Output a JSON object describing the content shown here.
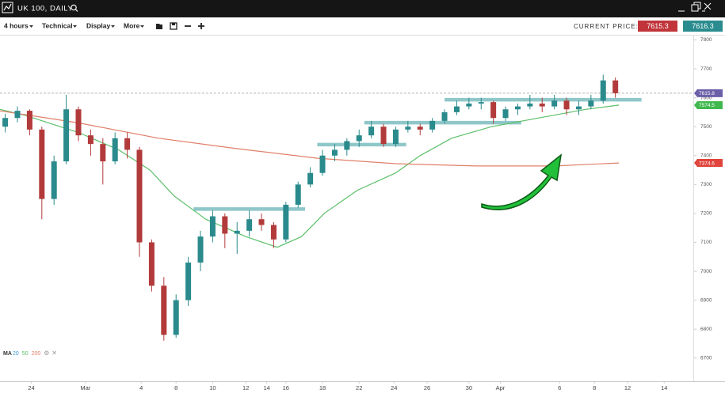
{
  "header": {
    "symbol": "UK 100, DAILY"
  },
  "toolbar": {
    "items": [
      "4 hours",
      "Technical",
      "Display",
      "More"
    ],
    "current_price_label": "CURRENT PRICE:",
    "bid": 7615.3,
    "ask": 7616.3
  },
  "chart_data": {
    "type": "candlestick",
    "x": [
      0.3,
      1.0,
      1.7,
      2.4,
      3.1,
      3.8,
      4.5,
      5.2,
      5.9,
      6.6,
      7.3,
      8.0,
      8.7,
      9.4,
      10.1,
      10.8,
      11.5,
      12.2,
      12.9,
      13.6,
      14.3,
      15.0,
      15.7,
      16.4,
      17.1,
      17.8,
      18.5,
      19.2,
      19.9,
      20.6,
      21.3,
      22.0,
      22.7,
      23.4,
      24.1,
      24.8,
      25.5,
      26.2,
      26.9,
      27.6,
      28.3,
      29.0,
      29.7,
      30.4,
      31.1,
      31.8,
      32.5,
      33.2,
      33.9,
      34.6,
      35.3
    ],
    "candles": [
      [
        7500,
        7545,
        7480,
        7530
      ],
      [
        7530,
        7570,
        7515,
        7555
      ],
      [
        7555,
        7560,
        7470,
        7490
      ],
      [
        7490,
        7500,
        7180,
        7250
      ],
      [
        7250,
        7400,
        7230,
        7380
      ],
      [
        7380,
        7610,
        7370,
        7560
      ],
      [
        7560,
        7570,
        7450,
        7470
      ],
      [
        7470,
        7490,
        7400,
        7440
      ],
      [
        7440,
        7460,
        7300,
        7380
      ],
      [
        7380,
        7480,
        7370,
        7460
      ],
      [
        7460,
        7480,
        7390,
        7420
      ],
      [
        7420,
        7430,
        7050,
        7100
      ],
      [
        7100,
        7110,
        6930,
        6950
      ],
      [
        6950,
        6980,
        6760,
        6780
      ],
      [
        6780,
        6920,
        6770,
        6900
      ],
      [
        6900,
        7050,
        6880,
        7030
      ],
      [
        7030,
        7140,
        7000,
        7120
      ],
      [
        7120,
        7210,
        7100,
        7190
      ],
      [
        7190,
        7200,
        7080,
        7130
      ],
      [
        7130,
        7170,
        7060,
        7140
      ],
      [
        7140,
        7210,
        7120,
        7180
      ],
      [
        7180,
        7200,
        7140,
        7160
      ],
      [
        7160,
        7170,
        7080,
        7110
      ],
      [
        7110,
        7240,
        7100,
        7230
      ],
      [
        7230,
        7310,
        7220,
        7300
      ],
      [
        7300,
        7360,
        7290,
        7340
      ],
      [
        7340,
        7420,
        7330,
        7400
      ],
      [
        7400,
        7440,
        7380,
        7420
      ],
      [
        7420,
        7460,
        7400,
        7450
      ],
      [
        7450,
        7490,
        7430,
        7470
      ],
      [
        7470,
        7520,
        7460,
        7500
      ],
      [
        7500,
        7510,
        7430,
        7440
      ],
      [
        7440,
        7500,
        7430,
        7490
      ],
      [
        7490,
        7520,
        7480,
        7500
      ],
      [
        7500,
        7510,
        7470,
        7490
      ],
      [
        7490,
        7530,
        7480,
        7520
      ],
      [
        7520,
        7560,
        7510,
        7550
      ],
      [
        7550,
        7590,
        7540,
        7570
      ],
      [
        7570,
        7600,
        7560,
        7580
      ],
      [
        7580,
        7600,
        7560,
        7585
      ],
      [
        7585,
        7590,
        7510,
        7530
      ],
      [
        7530,
        7570,
        7520,
        7560
      ],
      [
        7560,
        7580,
        7540,
        7570
      ],
      [
        7570,
        7610,
        7560,
        7580
      ],
      [
        7580,
        7600,
        7550,
        7570
      ],
      [
        7570,
        7610,
        7560,
        7590
      ],
      [
        7590,
        7600,
        7540,
        7560
      ],
      [
        7560,
        7590,
        7540,
        7570
      ],
      [
        7570,
        7610,
        7560,
        7590
      ],
      [
        7590,
        7680,
        7580,
        7660
      ],
      [
        7660,
        7670,
        7600,
        7615.8
      ]
    ],
    "up_color": "#2a8a8c",
    "down_color": "#b23a3a",
    "lines": [
      {
        "color": "#5cc06a",
        "x": [
          0,
          1.4,
          4.5,
          6.8,
          8.6,
          10,
          11.8,
          14.1,
          15.9,
          17.3,
          18.6,
          20.5,
          22.7,
          24.1,
          25.9,
          28.2,
          30.9,
          33.6,
          35.5
        ],
        "values": [
          7560,
          7540,
          7480,
          7420,
          7350,
          7260,
          7180,
          7120,
          7083,
          7120,
          7200,
          7280,
          7340,
          7400,
          7460,
          7500,
          7530,
          7560,
          7574.5
        ]
      },
      {
        "color": "#e0806a",
        "x": [
          0,
          4.5,
          9.1,
          13.6,
          18.2,
          22.7,
          27.3,
          31.8,
          35.5
        ],
        "values": [
          7555,
          7513,
          7460,
          7424,
          7391,
          7372,
          7364,
          7364,
          7374.6
        ]
      }
    ],
    "levels": [
      {
        "value": 7215,
        "x": [
          11.1,
          17.5
        ]
      },
      {
        "value": 7438,
        "x": [
          18.2,
          23.3
        ]
      },
      {
        "value": 7514,
        "x": [
          20.9,
          29.9
        ]
      },
      {
        "value": 7593,
        "x": [
          25.5,
          36.8
        ]
      }
    ],
    "level_color": "#8fc7c9",
    "price_tags": [
      {
        "value": 7615.8,
        "color": "#6b5fa8"
      },
      {
        "value": 7574.5,
        "color": "#3fb84f"
      },
      {
        "value": 7374.6,
        "color": "#e0443c"
      }
    ],
    "indicator": {
      "label": "MA",
      "periods": [
        "20",
        "50",
        "200"
      ],
      "colors": [
        "#3a9ad9",
        "#5cc06a",
        "#e0806a"
      ]
    },
    "xlim": [
      0,
      39.77
    ],
    "xticks": [
      {
        "value": 1.8,
        "label": "24"
      },
      {
        "value": 4.9,
        "label": "Mar"
      },
      {
        "value": 8.1,
        "label": "4"
      },
      {
        "value": 10.1,
        "label": "8"
      },
      {
        "value": 12.2,
        "label": "10"
      },
      {
        "value": 14.1,
        "label": "12"
      },
      {
        "value": 15.3,
        "label": "14"
      },
      {
        "value": 16.4,
        "label": "16"
      },
      {
        "value": 18.5,
        "label": "18"
      },
      {
        "value": 20.6,
        "label": "22"
      },
      {
        "value": 22.6,
        "label": "24"
      },
      {
        "value": 24.5,
        "label": "26"
      },
      {
        "value": 26.9,
        "label": "30"
      },
      {
        "value": 28.7,
        "label": "Apr"
      },
      {
        "value": 32.1,
        "label": "6"
      },
      {
        "value": 34.1,
        "label": "8"
      },
      {
        "value": 36.0,
        "label": "12"
      },
      {
        "value": 38.1,
        "label": "14"
      }
    ],
    "ylim": [
      6620,
      7815
    ],
    "yticks": [
      6700,
      6800,
      6900,
      7000,
      7100,
      7200,
      7300,
      7400,
      7500,
      7600,
      7700,
      7800
    ]
  }
}
